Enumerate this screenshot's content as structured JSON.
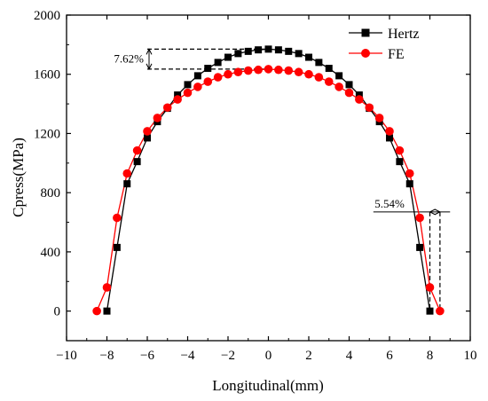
{
  "chart_data": {
    "type": "line",
    "title": "",
    "xlabel": "Longitudinal(mm)",
    "ylabel": "Cpress(MPa)",
    "xlim": [
      -10,
      10
    ],
    "ylim": [
      -200,
      2000
    ],
    "xticks": [
      -10,
      -8,
      -6,
      -4,
      -2,
      0,
      2,
      4,
      6,
      8,
      10
    ],
    "yticks": [
      0,
      400,
      800,
      1200,
      1600,
      2000
    ],
    "grid": false,
    "legend_position": "top-right",
    "series": [
      {
        "name": "Hertz",
        "color": "#000000",
        "marker": "square",
        "x": [
          -8.0,
          -7.5,
          -7.0,
          -6.5,
          -6.0,
          -5.5,
          -5.0,
          -4.5,
          -4.0,
          -3.5,
          -3.0,
          -2.5,
          -2.0,
          -1.5,
          -1.0,
          -0.5,
          0.0,
          0.5,
          1.0,
          1.5,
          2.0,
          2.5,
          3.0,
          3.5,
          4.0,
          4.5,
          5.0,
          5.5,
          6.0,
          6.5,
          7.0,
          7.5,
          8.0
        ],
        "y": [
          0,
          430,
          860,
          1010,
          1170,
          1280,
          1370,
          1460,
          1530,
          1590,
          1640,
          1680,
          1715,
          1740,
          1755,
          1765,
          1770,
          1765,
          1755,
          1740,
          1715,
          1680,
          1640,
          1590,
          1530,
          1460,
          1370,
          1280,
          1170,
          1010,
          860,
          430,
          0
        ]
      },
      {
        "name": "FE",
        "color": "#ff0000",
        "marker": "circle",
        "x": [
          -8.5,
          -8.0,
          -7.5,
          -7.0,
          -6.5,
          -6.0,
          -5.5,
          -5.0,
          -4.5,
          -4.0,
          -3.5,
          -3.0,
          -2.5,
          -2.0,
          -1.5,
          -1.0,
          -0.5,
          0.0,
          0.5,
          1.0,
          1.5,
          2.0,
          2.5,
          3.0,
          3.5,
          4.0,
          4.5,
          5.0,
          5.5,
          6.0,
          6.5,
          7.0,
          7.5,
          8.0,
          8.5
        ],
        "y": [
          0,
          160,
          630,
          930,
          1085,
          1215,
          1305,
          1375,
          1430,
          1475,
          1515,
          1550,
          1580,
          1600,
          1615,
          1625,
          1630,
          1635,
          1630,
          1625,
          1615,
          1600,
          1580,
          1550,
          1515,
          1475,
          1430,
          1375,
          1305,
          1215,
          1085,
          930,
          630,
          160,
          0
        ]
      }
    ],
    "annotations": [
      {
        "text": "7.62%",
        "x_from": -6.0,
        "x_to": 0.0,
        "y_from": 1635,
        "y_to": 1770
      },
      {
        "text": "5.54%",
        "x_from": 5.2,
        "x_to": 9.0,
        "y_from": 0,
        "y_to": 670,
        "x_ref_low": 8.0,
        "x_ref_high": 8.5
      }
    ]
  }
}
